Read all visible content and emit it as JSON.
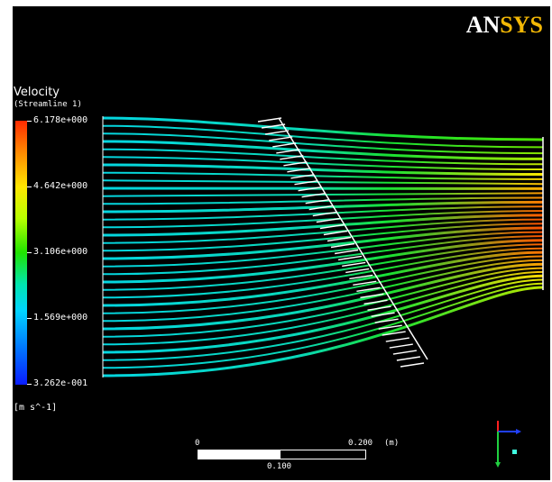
{
  "logo": {
    "part1": "AN",
    "part2": "SYS"
  },
  "legend": {
    "title": "Velocity",
    "subtitle": "Streamline 1",
    "ticks": [
      "6.178e+000",
      "4.642e+000",
      "3.106e+000",
      "1.569e+000",
      "3.262e-001"
    ],
    "units": "[m s^-1]",
    "colors": [
      "#ff2a00",
      "#ffe600",
      "#1fe400",
      "#00d4ff",
      "#0a1cff"
    ]
  },
  "scale": {
    "label_start": "0",
    "label_end": "0.200",
    "label_unit": "(m)",
    "label_mid": "0.100"
  },
  "axes_triad": {
    "colors": [
      "#ff0000",
      "#2040ff",
      "#00ff40"
    ]
  }
}
